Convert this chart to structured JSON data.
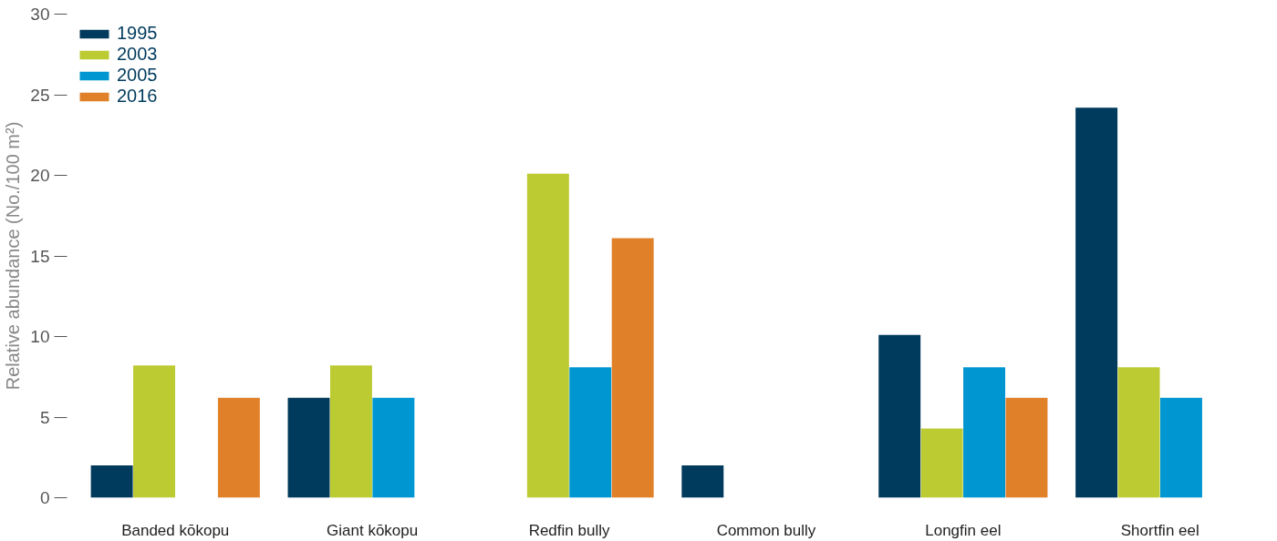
{
  "chart_data": {
    "type": "bar",
    "ylabel": "Relative abundance (No./100 m²)",
    "categories": [
      "Banded kōkopu",
      "Giant kōkopu",
      "Redfin bully",
      "Common bully",
      "Longfin eel",
      "Shortfin eel"
    ],
    "series": [
      {
        "name": "1995",
        "color": "#003a5d",
        "values": [
          2.0,
          6.2,
          null,
          2.0,
          10.1,
          24.2
        ]
      },
      {
        "name": "2003",
        "color": "#bccb32",
        "values": [
          8.2,
          8.2,
          20.1,
          null,
          4.3,
          8.1
        ]
      },
      {
        "name": "2005",
        "color": "#0096d2",
        "values": [
          null,
          6.2,
          8.1,
          null,
          8.1,
          6.2
        ]
      },
      {
        "name": "2016",
        "color": "#e0812a",
        "values": [
          6.2,
          null,
          16.1,
          null,
          6.2,
          null
        ]
      }
    ],
    "ylim": [
      0,
      30
    ],
    "yticks": [
      0,
      5,
      10,
      15,
      20,
      25,
      30
    ],
    "grid": false,
    "legend": "top left"
  }
}
